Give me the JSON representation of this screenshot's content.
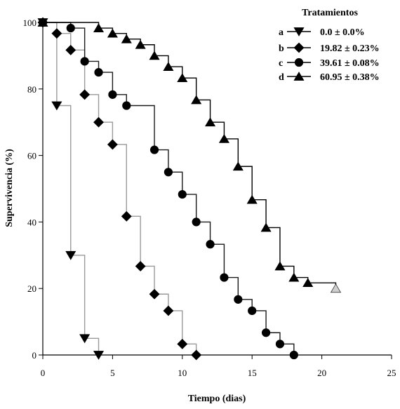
{
  "chart_data": {
    "type": "line",
    "step": true,
    "xlabel": "Tiempo (dias)",
    "ylabel": "Supervivencia (%)",
    "xlim": [
      0,
      25
    ],
    "ylim": [
      0,
      100
    ],
    "xticks": [
      0,
      5,
      10,
      15,
      20,
      25
    ],
    "yticks": [
      0,
      20,
      40,
      60,
      80,
      100
    ],
    "grid": false,
    "legend": {
      "title": "Tratamientos",
      "position": "top-right"
    },
    "series": [
      {
        "name": "0.0 ± 0.0%",
        "letter": "a",
        "marker": "triangle-down",
        "line_color": "#9a9a9a",
        "x": [
          0,
          1,
          2,
          3,
          4
        ],
        "y": [
          100,
          75,
          30,
          5,
          0
        ]
      },
      {
        "name": "19.82 ± 0.23%",
        "letter": "b",
        "marker": "diamond",
        "line_color": "#9a9a9a",
        "x": [
          0,
          1,
          2,
          3,
          4,
          5,
          6,
          7,
          8,
          9,
          10,
          11
        ],
        "y": [
          100,
          96.7,
          91.7,
          78.3,
          70,
          63.3,
          41.7,
          26.7,
          18.3,
          13.3,
          3.3,
          0
        ]
      },
      {
        "name": "39.61 ± 0.08%",
        "letter": "c",
        "marker": "circle",
        "line_color": "#1a1a1a",
        "x": [
          0,
          2,
          3,
          4,
          5,
          6,
          8,
          9,
          10,
          11,
          12,
          13,
          14,
          15,
          16,
          17,
          18
        ],
        "y": [
          100,
          98.3,
          88.3,
          85,
          78.3,
          75,
          61.7,
          55,
          48.3,
          40,
          33.3,
          23.3,
          16.7,
          13.3,
          6.7,
          3.3,
          0
        ]
      },
      {
        "name": "60.95 ± 0.38%",
        "letter": "d",
        "marker": "triangle-up",
        "line_color": "#000000",
        "x": [
          0,
          4,
          5,
          6,
          7,
          8,
          9,
          10,
          11,
          12,
          13,
          14,
          15,
          16,
          17,
          18,
          19,
          21
        ],
        "y": [
          100,
          98.3,
          96.7,
          95,
          93.3,
          90,
          86.7,
          83.3,
          76.7,
          70,
          65,
          56.7,
          46.7,
          38.3,
          26.7,
          23.3,
          21.7,
          20
        ],
        "last_point_censored": true
      }
    ]
  }
}
